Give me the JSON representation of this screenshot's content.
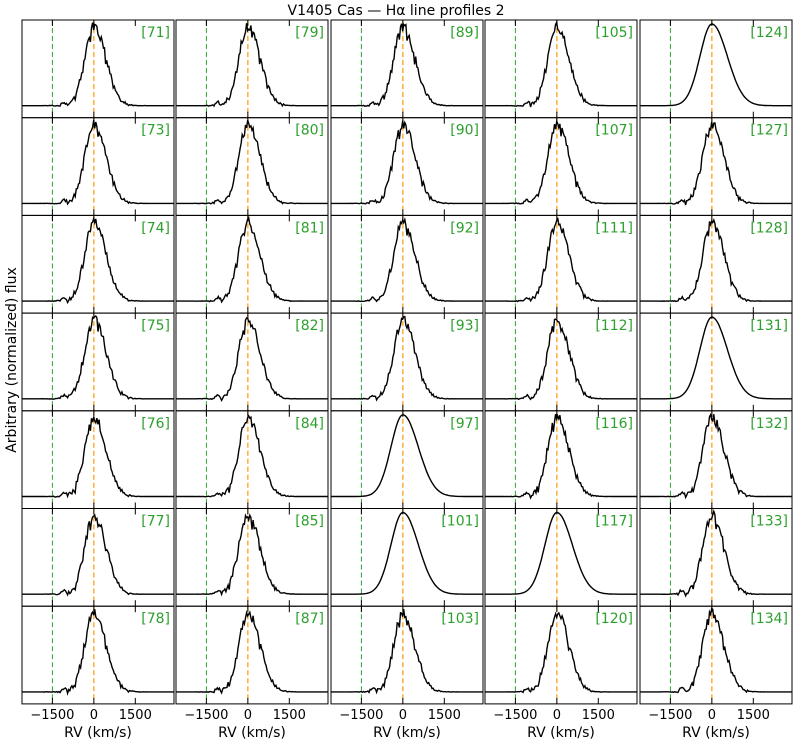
{
  "chart_data": {
    "type": "line",
    "title": "V1405 Cas — Hα line profiles 2",
    "xlabel": "RV (km/s)",
    "ylabel": "Arbitrary (normalized) flux",
    "xlim": [
      -2600,
      2900
    ],
    "xticks": [
      -1500,
      0,
      1500
    ],
    "xtick_labels": [
      "−1500",
      "0",
      "1500"
    ],
    "grid": false,
    "colors": {
      "profile": "#000000",
      "reference_line_zero": "#ff9f1c",
      "reference_line_left": "#2ca02c",
      "index_label": "#2ca02c"
    },
    "reference_lines_rv": [
      -1500,
      0
    ],
    "layout": {
      "columns": 5,
      "rows": 7,
      "order": "column-major"
    },
    "panels": [
      {
        "label": "[71]",
        "shape": "jagged"
      },
      {
        "label": "[73]",
        "shape": "jagged"
      },
      {
        "label": "[74]",
        "shape": "jagged"
      },
      {
        "label": "[75]",
        "shape": "jagged"
      },
      {
        "label": "[76]",
        "shape": "jagged"
      },
      {
        "label": "[77]",
        "shape": "jagged"
      },
      {
        "label": "[78]",
        "shape": "jagged"
      },
      {
        "label": "[79]",
        "shape": "jagged"
      },
      {
        "label": "[80]",
        "shape": "jagged"
      },
      {
        "label": "[81]",
        "shape": "jagged"
      },
      {
        "label": "[82]",
        "shape": "jagged"
      },
      {
        "label": "[84]",
        "shape": "jagged"
      },
      {
        "label": "[85]",
        "shape": "jagged"
      },
      {
        "label": "[87]",
        "shape": "jagged"
      },
      {
        "label": "[89]",
        "shape": "jagged"
      },
      {
        "label": "[90]",
        "shape": "jagged"
      },
      {
        "label": "[92]",
        "shape": "jagged"
      },
      {
        "label": "[93]",
        "shape": "jagged"
      },
      {
        "label": "[97]",
        "shape": "smooth"
      },
      {
        "label": "[101]",
        "shape": "smooth"
      },
      {
        "label": "[103]",
        "shape": "jagged"
      },
      {
        "label": "[105]",
        "shape": "jagged"
      },
      {
        "label": "[107]",
        "shape": "jagged"
      },
      {
        "label": "[111]",
        "shape": "jagged"
      },
      {
        "label": "[112]",
        "shape": "jagged"
      },
      {
        "label": "[116]",
        "shape": "jagged"
      },
      {
        "label": "[117]",
        "shape": "smooth"
      },
      {
        "label": "[120]",
        "shape": "jagged"
      },
      {
        "label": "[124]",
        "shape": "smooth"
      },
      {
        "label": "[127]",
        "shape": "jagged"
      },
      {
        "label": "[128]",
        "shape": "jagged"
      },
      {
        "label": "[131]",
        "shape": "smooth"
      },
      {
        "label": "[132]",
        "shape": "jagged"
      },
      {
        "label": "[133]",
        "shape": "jagged"
      },
      {
        "label": "[134]",
        "shape": "jagged"
      }
    ]
  }
}
